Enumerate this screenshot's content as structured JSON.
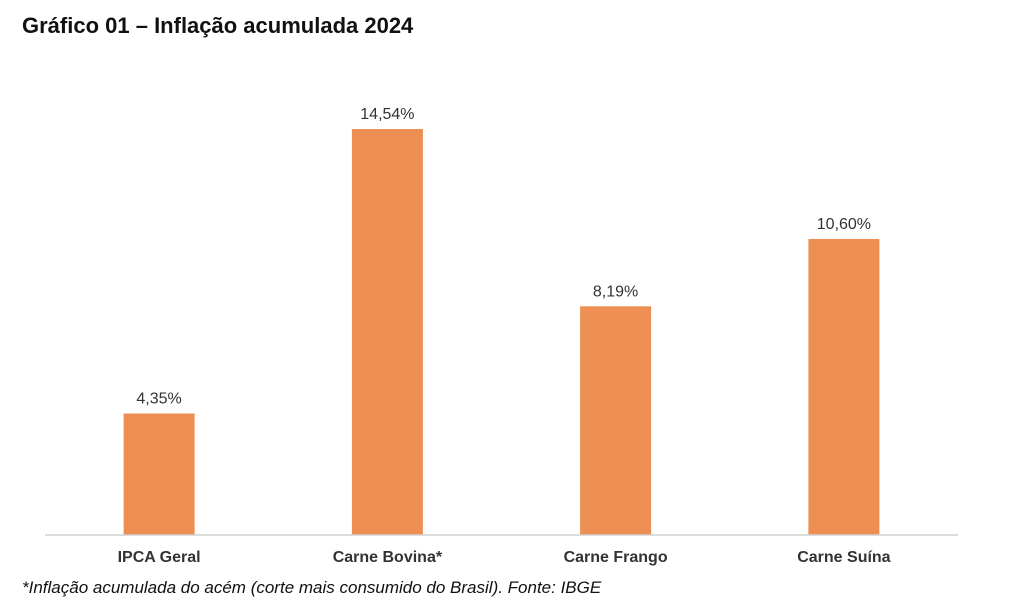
{
  "title": "Gráfico 01 – Inflação acumulada 2024",
  "footnote": "*Inflação acumulada do acém (corte mais consumido do Brasil). Fonte: IBGE",
  "colors": {
    "bar": "#ED8F52",
    "axis": "#D0D0D0",
    "label": "#333333",
    "category": "#333333"
  },
  "chart_data": {
    "type": "bar",
    "title": "Gráfico 01 – Inflação acumulada 2024",
    "xlabel": "",
    "ylabel": "",
    "grid": false,
    "legend": "none",
    "categories": [
      "IPCA Geral",
      "Carne Bovina*",
      "Carne Frango",
      "Carne Suína"
    ],
    "values": [
      4.35,
      14.54,
      8.19,
      10.6
    ],
    "value_labels": [
      "4,35%",
      "14,54%",
      "8,19%",
      "10,60%"
    ],
    "ylim": [
      0,
      14.54
    ]
  }
}
